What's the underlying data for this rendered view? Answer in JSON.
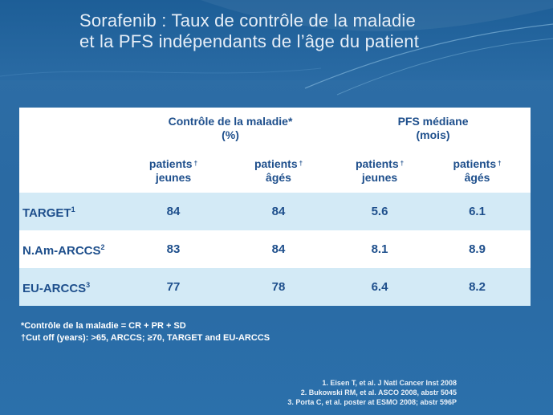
{
  "title": {
    "line1": "Sorafenib : Taux de contrôle de la maladie",
    "line2": "et la PFS indépendants de l’âge du patient"
  },
  "table": {
    "group_headers": [
      {
        "line1": "Contrôle de la maladie*",
        "line2": "(%)"
      },
      {
        "line1": "PFS médiane",
        "line2": "(mois)"
      }
    ],
    "sub_headers": [
      {
        "line1": "patients",
        "mark": "†",
        "line2": "jeunes"
      },
      {
        "line1": "patients",
        "mark": "†",
        "line2": "âgés"
      },
      {
        "line1": "patients",
        "mark": "†",
        "line2": "jeunes"
      },
      {
        "line1": "patients",
        "mark": "†",
        "line2": "âgés"
      }
    ],
    "rows": [
      {
        "label": "TARGET",
        "sup": "1",
        "values": [
          "84",
          "84",
          "5.6",
          "6.1"
        ]
      },
      {
        "label": "N.Am-ARCCS",
        "sup": "2",
        "values": [
          "83",
          "84",
          "8.1",
          "8.9"
        ]
      },
      {
        "label": "EU-ARCCS",
        "sup": "3",
        "values": [
          "77",
          "78",
          "6.4",
          "8.2"
        ]
      }
    ]
  },
  "footnotes": {
    "line1": "*Contrôle de la maladie  =  CR + PR + SD",
    "line2": "†Cut off (years): >65, ARCCS;  ≥70, TARGET and EU-ARCCS"
  },
  "references": [
    "1. Eisen T, et al. J Natl Cancer Inst 2008",
    "2. Bukowski RM, et al. ASCO 2008, abstr 5045",
    "3. Porta C, et al. poster at ESMO 2008; abstr 596P"
  ],
  "colors": {
    "background": "#2a6ba4",
    "table_text": "#1e4f8c",
    "row_shade": "#d3eaf6"
  }
}
